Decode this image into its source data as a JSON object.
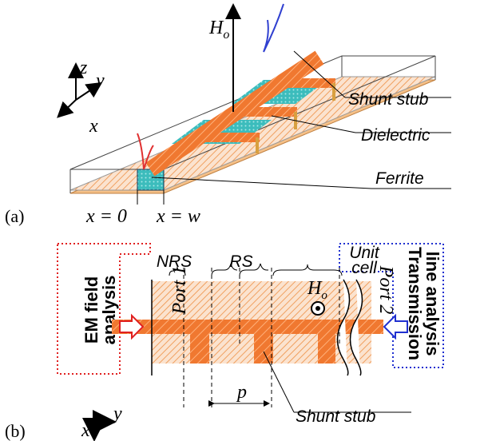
{
  "panel_a": {
    "label": "(a)",
    "field_symbol": "H",
    "field_subscript": "o",
    "axes": {
      "z": "z",
      "y": "y",
      "x": "x"
    },
    "labels": [
      "Shunt stub",
      "Dielectric",
      "Ferrite"
    ],
    "positions": [
      "x = 0",
      "x = w"
    ]
  },
  "panel_b": {
    "label": "(b)",
    "left_analysis": [
      "EM field",
      "analysis"
    ],
    "right_analysis": [
      "Transmission",
      "line analysis"
    ],
    "regions": [
      "NRS",
      "RS"
    ],
    "unit_cell": [
      "Unit",
      "cell"
    ],
    "ports": [
      "Port 1",
      "Port 2"
    ],
    "field_symbol": "H",
    "field_subscript": "o",
    "period": "p",
    "stub_label": "Shunt stub",
    "axes": {
      "x": "x",
      "y": "y"
    }
  }
}
